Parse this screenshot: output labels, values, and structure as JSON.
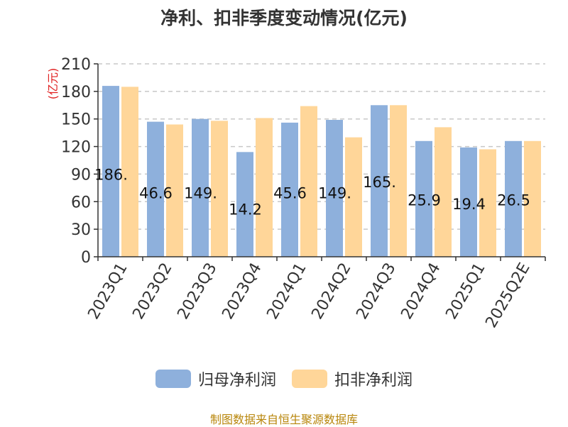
{
  "chart_data": {
    "type": "bar",
    "title": "净利、扣非季度变动情况(亿元)",
    "ylabel": "(亿元)",
    "ylim": [
      0,
      210
    ],
    "yticks": [
      0,
      30,
      60,
      90,
      120,
      150,
      180,
      210
    ],
    "grid": true,
    "legend_position": "bottom",
    "categories": [
      "2023Q1",
      "2023Q2",
      "2023Q3",
      "2023Q4",
      "2024Q1",
      "2024Q2",
      "2024Q3",
      "2024Q4",
      "2025Q1",
      "2025Q2E"
    ],
    "series": [
      {
        "name": "归母净利润",
        "color": "#8eb0dc",
        "values": [
          186,
          147,
          150,
          114,
          146,
          149,
          165,
          126,
          119,
          126
        ]
      },
      {
        "name": "扣非净利润",
        "color": "#ffd699",
        "values": [
          185,
          144,
          148,
          151,
          164,
          130,
          165,
          141,
          117,
          126
        ]
      }
    ],
    "annotations": [
      "186.",
      "46.6",
      "149.",
      "14.2",
      "45.6",
      "149.",
      "165.",
      "25.9",
      "19.4",
      "26.5"
    ],
    "annotation_values": [
      90,
      70,
      70,
      52,
      70,
      70,
      82,
      62,
      58,
      62
    ]
  },
  "footer": {
    "source": "制图数据来自恒生聚源数据库"
  }
}
